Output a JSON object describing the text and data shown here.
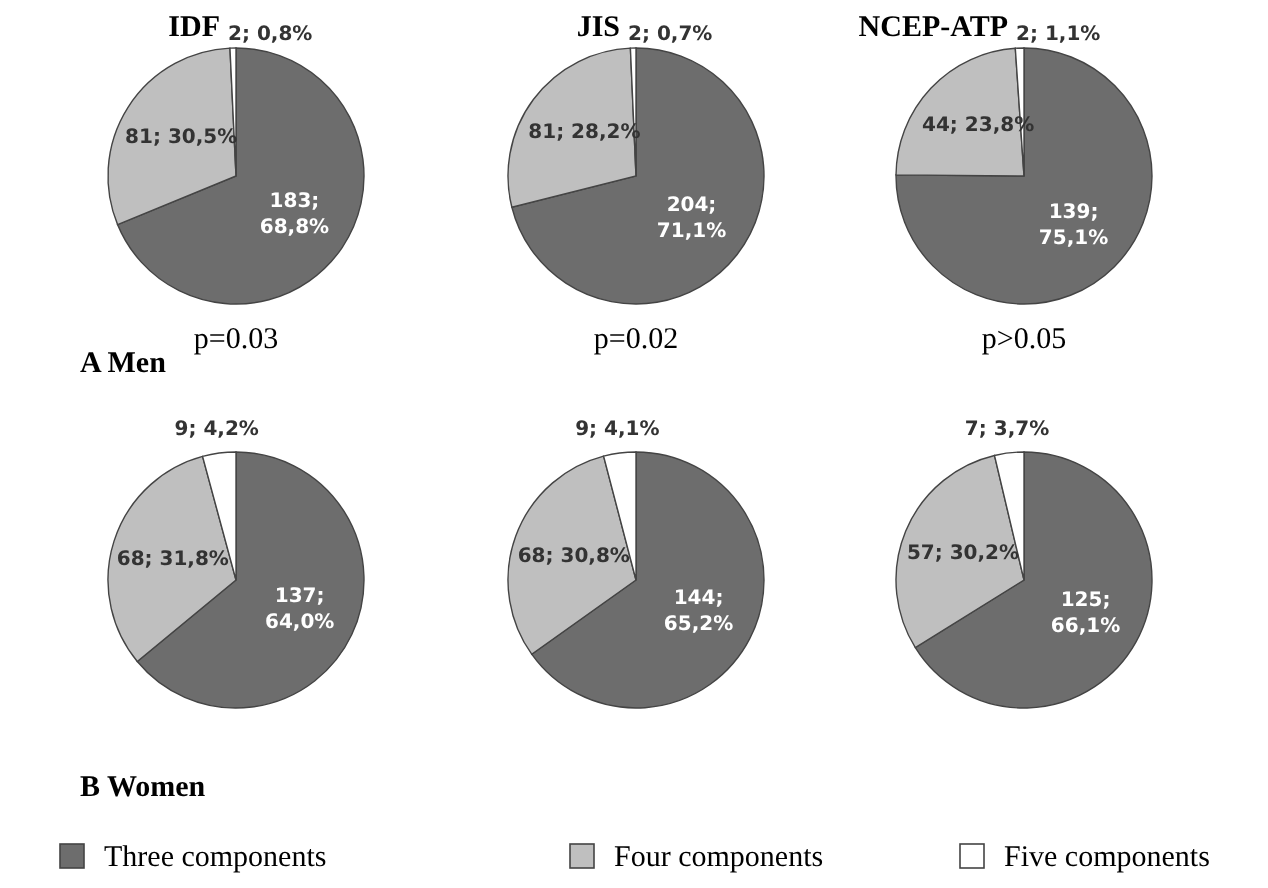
{
  "chart_data": [
    {
      "type": "pie",
      "title": "IDF",
      "categories": [
        null,
        null,
        null
      ],
      "colors": [
        "#6d6d6d",
        "#bfbfbf",
        "#ffffff"
      ],
      "values": [
        183,
        81,
        2
      ],
      "value_labels": [
        "183; 68,8%",
        "81; 30,5%",
        "2; 0,8%"
      ],
      "annotations": [
        "p=0.03",
        "A Men"
      ]
    },
    {
      "type": "pie",
      "title": "JIS",
      "categories": [
        null,
        null,
        null
      ],
      "colors": [
        "#6d6d6d",
        "#bfbfbf",
        "#ffffff"
      ],
      "values": [
        204,
        81,
        2
      ],
      "value_labels": [
        "204; 71,1%",
        "81; 28,2%",
        "2; 0,7%"
      ],
      "annotations": [
        "p=0.02"
      ]
    },
    {
      "type": "pie",
      "title": "NCEP-ATP",
      "categories": [
        null,
        null,
        null
      ],
      "colors": [
        "#6d6d6d",
        "#bfbfbf",
        "#ffffff"
      ],
      "values": [
        139,
        44,
        2
      ],
      "value_labels": [
        "139; 75,1%",
        "44; 23,8%",
        "2; 1,1%"
      ],
      "annotations": [
        "p>0.05"
      ]
    },
    {
      "type": "pie",
      "categories": [
        "Three components",
        "Four components",
        "Five components"
      ],
      "colors": [
        "#6d6d6d",
        "#bfbfbf",
        "#ffffff"
      ],
      "values": [
        137,
        68,
        9
      ],
      "value_labels": [
        "137; 64,0%",
        "68; 31,8%",
        "9; 4,2%"
      ],
      "annotations": [
        "B Women"
      ],
      "legend": "bottom"
    },
    {
      "type": "pie",
      "categories": [
        null,
        null,
        null
      ],
      "colors": [
        "#6d6d6d",
        "#bfbfbf",
        "#ffffff"
      ],
      "values": [
        144,
        68,
        9
      ],
      "value_labels": [
        "144; 65,2%",
        "68; 30,8%",
        "9; 4,1%"
      ]
    },
    {
      "type": "pie",
      "categories": [
        null,
        null,
        null
      ],
      "colors": [
        "#6d6d6d",
        "#bfbfbf",
        "#ffffff"
      ],
      "values": [
        125,
        57,
        7
      ],
      "value_labels": [
        "125; 66,1%",
        "57; 30,2%",
        "7; 3,7%"
      ]
    }
  ]
}
